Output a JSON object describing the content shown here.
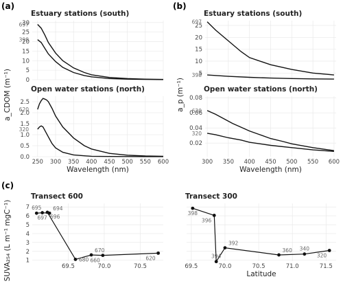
{
  "panels": [
    {
      "label": "(a)",
      "ylabel": "a_CDOM (m⁻¹)"
    },
    {
      "label": "(b)",
      "ylabel": "a_p (m⁻¹)"
    },
    {
      "label": "(c)",
      "ylabel": "SUVA₂₅₄ (L m⁻¹ mgC⁻¹)"
    }
  ],
  "chart_data": [
    {
      "type": "line",
      "title": "Estuary stations (south)",
      "xlim": [
        235,
        600
      ],
      "ylim": [
        0,
        31
      ],
      "xticks": [
        250,
        300,
        350,
        400,
        450,
        500,
        550,
        600
      ],
      "yticks": [
        0,
        5,
        10,
        15,
        20,
        25,
        30
      ],
      "show_xticks": false,
      "series": [
        {
          "name": "697",
          "x": [
            250,
            260,
            270,
            280,
            300,
            320,
            350,
            380,
            400,
            450,
            500,
            550,
            600
          ],
          "values": [
            29,
            27,
            23.5,
            19.5,
            14,
            10,
            6.2,
            3.8,
            2.6,
            1.2,
            0.6,
            0.3,
            0.15
          ]
        },
        {
          "name": "398",
          "x": [
            250,
            260,
            270,
            280,
            300,
            320,
            350,
            380,
            400,
            450,
            500,
            550,
            600
          ],
          "values": [
            21,
            19.5,
            16.5,
            13.5,
            9.5,
            6.5,
            3.8,
            2.2,
            1.5,
            0.6,
            0.3,
            0.15,
            0.08
          ]
        }
      ]
    },
    {
      "type": "line",
      "title": "Open water stations (north)",
      "xlim": [
        235,
        600
      ],
      "ylim": [
        0,
        2.75
      ],
      "xticks": [
        250,
        300,
        350,
        400,
        450,
        500,
        550,
        600
      ],
      "yticks": [
        0.0,
        0.5,
        1.0,
        1.5,
        2.0,
        2.5
      ],
      "ytick_labels": [
        "0.0",
        "0.5",
        "1.0",
        "1.5",
        "2.0",
        "2.5"
      ],
      "xlabel": "Wavelength (nm)",
      "series": [
        {
          "name": "620",
          "x": [
            250,
            255,
            260,
            265,
            270,
            275,
            280,
            290,
            300,
            320,
            350,
            380,
            400,
            450,
            500,
            550,
            600
          ],
          "values": [
            2.15,
            2.4,
            2.55,
            2.65,
            2.62,
            2.58,
            2.5,
            2.2,
            1.85,
            1.35,
            0.85,
            0.5,
            0.35,
            0.15,
            0.07,
            0.03,
            0.02
          ]
        },
        {
          "name": "320",
          "x": [
            250,
            255,
            260,
            265,
            270,
            280,
            290,
            300,
            320,
            350,
            380,
            400,
            450,
            500,
            550,
            600
          ],
          "values": [
            1.25,
            1.35,
            1.4,
            1.35,
            1.2,
            0.9,
            0.6,
            0.4,
            0.2,
            0.08,
            0.04,
            0.02,
            0.01,
            0.005,
            0.003,
            0.002
          ]
        }
      ]
    },
    {
      "type": "line",
      "title": "Estuary stations (south)",
      "xlim": [
        295,
        605
      ],
      "ylim": [
        2.2,
        27
      ],
      "xticks": [
        300,
        350,
        400,
        450,
        500,
        550,
        600
      ],
      "yticks": [
        5,
        10,
        15,
        20,
        25
      ],
      "show_xticks": false,
      "series": [
        {
          "name": "697",
          "x": [
            300,
            320,
            350,
            380,
            400,
            450,
            500,
            550,
            600
          ],
          "values": [
            26.5,
            23,
            18.5,
            14,
            11.5,
            8.5,
            6.5,
            5,
            4.2
          ]
        },
        {
          "name": "398",
          "x": [
            300,
            350,
            400,
            450,
            500,
            550,
            600
          ],
          "values": [
            4.2,
            3.6,
            3.2,
            2.9,
            2.7,
            2.55,
            2.45
          ]
        }
      ]
    },
    {
      "type": "line",
      "title": "Open water stations (north)",
      "xlim": [
        295,
        605
      ],
      "ylim": [
        0.002,
        0.082
      ],
      "xticks": [
        300,
        350,
        400,
        450,
        500,
        550,
        600
      ],
      "yticks": [
        0.02,
        0.04,
        0.06,
        0.08
      ],
      "ytick_labels": [
        "0.02",
        "0.04",
        "0.06",
        "0.08"
      ],
      "xlabel": "Wavelength (nm)",
      "series": [
        {
          "name": "620",
          "x": [
            300,
            320,
            340,
            360,
            380,
            400,
            420,
            450,
            480,
            500,
            550,
            600
          ],
          "values": [
            0.063,
            0.058,
            0.052,
            0.046,
            0.041,
            0.036,
            0.032,
            0.026,
            0.022,
            0.019,
            0.014,
            0.01
          ]
        },
        {
          "name": "320",
          "x": [
            300,
            320,
            350,
            380,
            400,
            450,
            500,
            550,
            600
          ],
          "values": [
            0.033,
            0.031,
            0.027,
            0.024,
            0.021,
            0.017,
            0.014,
            0.011,
            0.009
          ]
        }
      ]
    },
    {
      "type": "scatter",
      "title": "Transect 600",
      "xlim": [
        69.0,
        70.82
      ],
      "ylim": [
        0.9,
        7.4
      ],
      "xticks": [
        69.5,
        70.0,
        70.5
      ],
      "xtick_labels": [
        "69.5",
        "70.0",
        "70.5"
      ],
      "yticks": [
        1,
        2,
        3,
        4,
        5,
        6,
        7
      ],
      "connect": true,
      "points": [
        {
          "label": "695",
          "x": 69.06,
          "y": 6.3,
          "lpos": "above"
        },
        {
          "label": "697",
          "x": 69.14,
          "y": 6.35,
          "lpos": "below"
        },
        {
          "label": "694",
          "x": 69.24,
          "y": 6.3,
          "lpos": "above-right"
        },
        {
          "label": "696",
          "x": 69.21,
          "y": 6.4,
          "lpos": "below-right"
        },
        {
          "label": "680",
          "x": 69.6,
          "y": 1.1,
          "lpos": "right"
        },
        {
          "label": "670",
          "x": 69.82,
          "y": 1.6,
          "lpos": "above-right"
        },
        {
          "label": "660",
          "x": 69.98,
          "y": 1.55,
          "lpos": "below-left"
        },
        {
          "label": "620",
          "x": 70.75,
          "y": 1.8,
          "lpos": "below-left"
        }
      ]
    },
    {
      "type": "scatter",
      "title": "Transect 300",
      "xlim": [
        69.43,
        71.65
      ],
      "ylim": [
        0.9,
        7.4
      ],
      "xticks": [
        69.5,
        70.0,
        70.5,
        71.0,
        71.5
      ],
      "xtick_labels": [
        "69.5",
        "70.0",
        "70.5",
        "71.0",
        "71.5"
      ],
      "yticks": [
        1,
        2,
        3,
        4,
        5,
        6,
        7
      ],
      "show_yticks": false,
      "xlabel": "Latitude",
      "connect": true,
      "points": [
        {
          "label": "398",
          "x": 69.52,
          "y": 6.85,
          "lpos": "below"
        },
        {
          "label": "396",
          "x": 69.84,
          "y": 6.05,
          "lpos": "below-left"
        },
        {
          "label": "394",
          "x": 69.87,
          "y": 0.85,
          "lpos": "above"
        },
        {
          "label": "392",
          "x": 70.0,
          "y": 2.4,
          "lpos": "above-right"
        },
        {
          "label": "360",
          "x": 70.8,
          "y": 1.6,
          "lpos": "above-right"
        },
        {
          "label": "340",
          "x": 71.18,
          "y": 1.7,
          "lpos": "above"
        },
        {
          "label": "320",
          "x": 71.55,
          "y": 2.1,
          "lpos": "below-left"
        }
      ]
    }
  ]
}
